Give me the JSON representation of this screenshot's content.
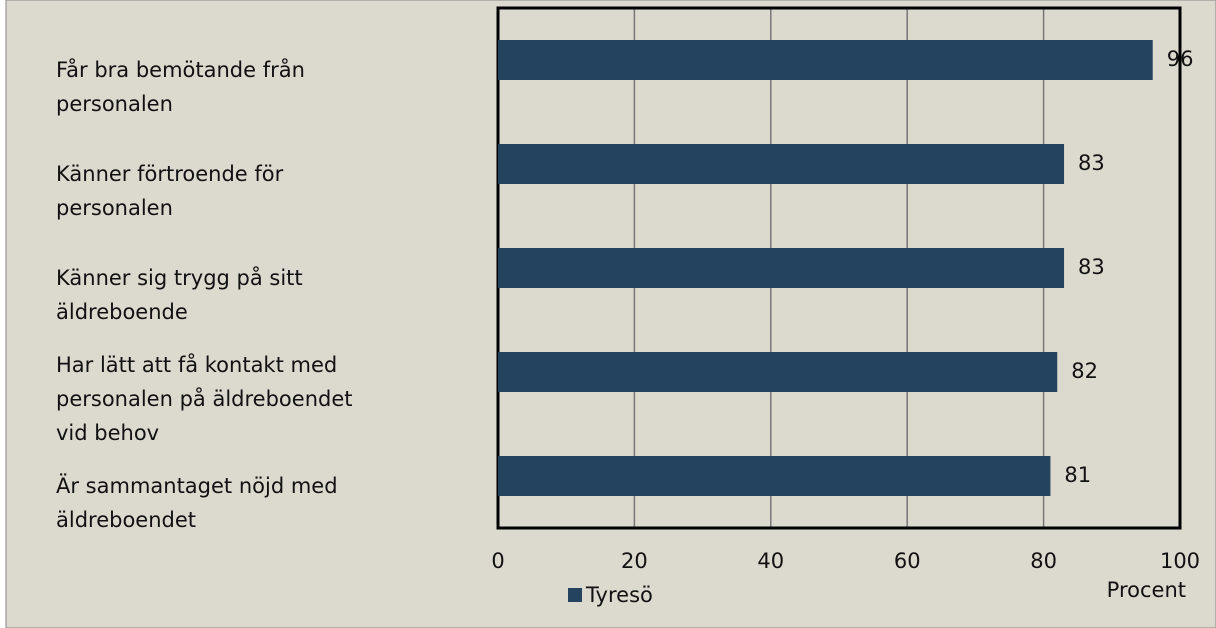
{
  "chart_data": {
    "type": "bar",
    "orientation": "horizontal",
    "categories": [
      "Får bra bemötande från\npersonalen",
      "Känner förtroende för\npersonalen",
      "Känner sig trygg på sitt\näldreboende",
      "Har lätt att få kontakt med\npersonalen på äldreboendet\nvid behov",
      "Är sammantaget nöjd med\näldreboendet"
    ],
    "series": [
      {
        "name": "Tyresö",
        "color": "#24435f",
        "values": [
          96,
          83,
          83,
          82,
          81
        ]
      }
    ],
    "xlim": [
      0,
      100
    ],
    "xticks": [
      0,
      20,
      40,
      60,
      80,
      100
    ],
    "grid": true,
    "x_label": "Procent",
    "legend": "bottom"
  }
}
